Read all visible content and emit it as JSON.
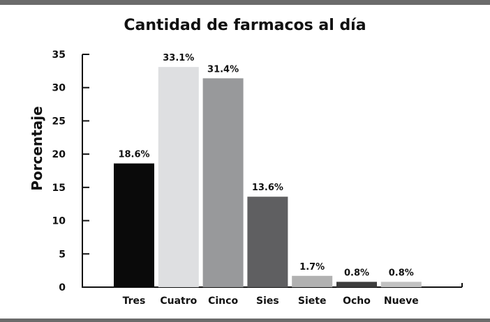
{
  "chart_data": {
    "type": "bar",
    "title": "Cantidad de farmacos al día",
    "xlabel": "",
    "ylabel": "Porcentaje",
    "categories": [
      "Tres",
      "Cuatro",
      "Cinco",
      "Sies",
      "Siete",
      "Ocho",
      "Nueve"
    ],
    "values": [
      18.6,
      33.1,
      31.4,
      13.6,
      1.7,
      0.8,
      0.8
    ],
    "data_labels": [
      "18.6%",
      "33.1%",
      "31.4%",
      "13.6%",
      "1.7%",
      "0.8%",
      "0.8%"
    ],
    "bar_colors": [
      "#0a0a0a",
      "#dedfe1",
      "#98999b",
      "#5f5f61",
      "#b1b1b1",
      "#3d3d3d",
      "#c2c2c2"
    ],
    "ylim": [
      0,
      35
    ],
    "yticks": [
      0,
      5,
      10,
      15,
      20,
      25,
      30,
      35
    ],
    "grid": false,
    "legend": "none"
  }
}
